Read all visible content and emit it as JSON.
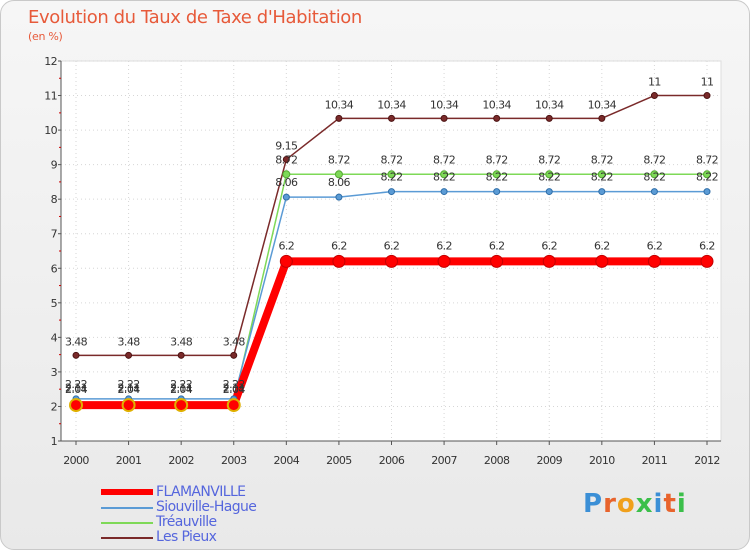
{
  "chart_data": {
    "type": "line",
    "title": "Evolution du Taux de Taxe d'Habitation",
    "subtitle": "(en %)",
    "xlabel": "",
    "ylabel": "",
    "ylim": [
      1,
      12
    ],
    "yticks": [
      1,
      2,
      3,
      4,
      5,
      6,
      7,
      8,
      9,
      10,
      11,
      12
    ],
    "categories": [
      "2000",
      "2001",
      "2002",
      "2003",
      "2004",
      "2005",
      "2006",
      "2007",
      "2008",
      "2009",
      "2010",
      "2011",
      "2012"
    ],
    "series": [
      {
        "name": "FLAMANVILLE",
        "color": "#ff0000",
        "values": [
          2.04,
          2.04,
          2.04,
          2.04,
          6.2,
          6.2,
          6.2,
          6.2,
          6.2,
          6.2,
          6.2,
          6.2,
          6.2
        ],
        "labels": [
          "2.04",
          "2.04",
          "2.04",
          "2.04",
          "6.2",
          "6.2",
          "6.2",
          "6.2",
          "6.2",
          "6.2",
          "6.2",
          "6.2",
          "6.2"
        ]
      },
      {
        "name": "Siouville-Hague",
        "color": "#5b9bd5",
        "values": [
          2.22,
          2.22,
          2.22,
          2.22,
          8.06,
          8.06,
          8.22,
          8.22,
          8.22,
          8.22,
          8.22,
          8.22,
          8.22
        ],
        "labels": [
          "2.22",
          "2.22",
          "2.22",
          "2.22",
          "8.06",
          "8.06",
          "8.22",
          "8.22",
          "8.22",
          "8.22",
          "8.22",
          "8.22",
          "8.22"
        ]
      },
      {
        "name": "Tréauville",
        "color": "#7ed957",
        "values": [
          2.11,
          2.11,
          2.11,
          2.11,
          8.72,
          8.72,
          8.72,
          8.72,
          8.72,
          8.72,
          8.72,
          8.72,
          8.72
        ],
        "labels": [
          "2.11",
          "2.11",
          "2.11",
          "2.11",
          "8.72",
          "8.72",
          "8.72",
          "8.72",
          "8.72",
          "8.72",
          "8.72",
          "8.72",
          "8.72"
        ]
      },
      {
        "name": "Les Pieux",
        "color": "#7a2a2a",
        "values": [
          3.48,
          3.48,
          3.48,
          3.48,
          9.15,
          10.34,
          10.34,
          10.34,
          10.34,
          10.34,
          10.34,
          11,
          11
        ],
        "labels": [
          "3.48",
          "3.48",
          "3.48",
          "3.48",
          "9.15",
          "10.34",
          "10.34",
          "10.34",
          "10.34",
          "10.34",
          "10.34",
          "11",
          "11"
        ]
      }
    ],
    "legend_position": "bottom-left"
  },
  "logo": {
    "letters": [
      "P",
      "r",
      "o",
      "x",
      "i",
      "t",
      "i"
    ]
  }
}
